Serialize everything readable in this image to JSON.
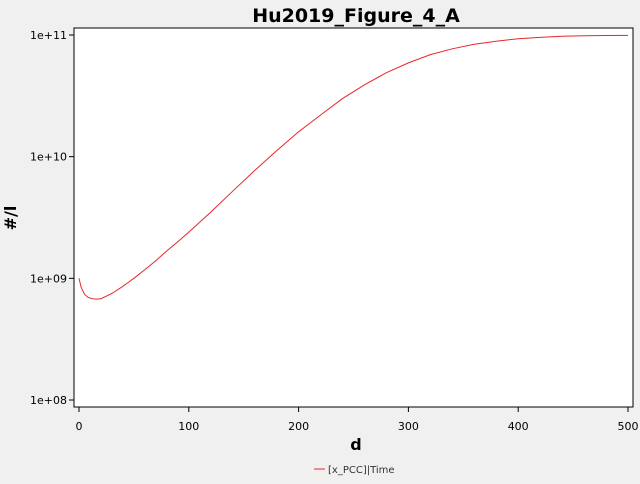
{
  "chart_data": {
    "type": "line",
    "title": "Hu2019_Figure_4_A",
    "xlabel": "d",
    "ylabel": "#/l",
    "xlim": [
      0,
      500
    ],
    "ylim": [
      100000000.0,
      100000000000.0
    ],
    "y_scale": "log",
    "grid": false,
    "legend_position": "bottom-center",
    "x_ticks": [
      {
        "value": 0,
        "label": "0"
      },
      {
        "value": 100,
        "label": "100"
      },
      {
        "value": 200,
        "label": "200"
      },
      {
        "value": 300,
        "label": "300"
      },
      {
        "value": 400,
        "label": "400"
      },
      {
        "value": 500,
        "label": "500"
      }
    ],
    "y_ticks": [
      {
        "value": 100000000.0,
        "label": "1e+08"
      },
      {
        "value": 1000000000.0,
        "label": "1e+09"
      },
      {
        "value": 10000000000.0,
        "label": "1e+10"
      },
      {
        "value": 100000000000.0,
        "label": "1e+11"
      }
    ],
    "series": [
      {
        "name": "[x_PCC]|Time",
        "color": "#e8262b",
        "x": [
          0,
          2,
          5,
          8,
          12,
          16,
          20,
          30,
          40,
          50,
          60,
          70,
          80,
          90,
          100,
          120,
          140,
          160,
          180,
          200,
          220,
          240,
          260,
          280,
          300,
          320,
          340,
          360,
          380,
          400,
          420,
          440,
          460,
          480,
          500
        ],
        "y": [
          1000000000.0,
          840000000.0,
          740000000.0,
          700000000.0,
          680000000.0,
          675000000.0,
          680000000.0,
          750000000.0,
          860000000.0,
          1000000000.0,
          1180000000.0,
          1400000000.0,
          1680000000.0,
          2000000000.0,
          2400000000.0,
          3500000000.0,
          5200000000.0,
          7700000000.0,
          11200000000.0,
          16000000000.0,
          22000000000.0,
          30000000000.0,
          39000000000.0,
          49000000000.0,
          59000000000.0,
          69000000000.0,
          77000000000.0,
          84000000000.0,
          89000000000.0,
          93000000000.0,
          95500000000.0,
          97500000000.0,
          98500000000.0,
          99000000000.0,
          99200000000.0
        ]
      }
    ]
  }
}
